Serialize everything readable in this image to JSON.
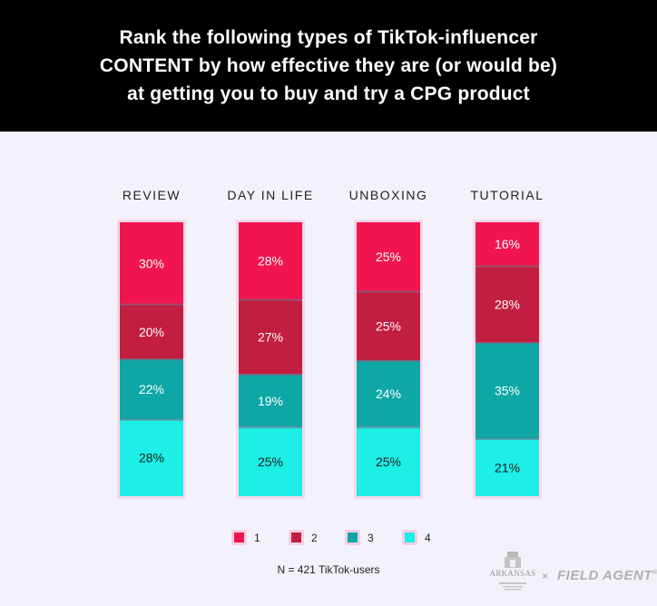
{
  "title_lines": [
    "Rank the following types of TikTok-influencer",
    "CONTENT by how effective they are (or would be)",
    "at getting you to buy and try a CPG product"
  ],
  "chart_data": {
    "type": "bar",
    "stacked": true,
    "percent": true,
    "categories": [
      "REVIEW",
      "DAY IN LIFE",
      "UNBOXING",
      "TUTORIAL"
    ],
    "series": [
      {
        "name": "1",
        "color": "#f0154f",
        "values": [
          30,
          28,
          25,
          16
        ]
      },
      {
        "name": "2",
        "color": "#c21e3f",
        "values": [
          20,
          27,
          25,
          28
        ]
      },
      {
        "name": "3",
        "color": "#0ea7a6",
        "values": [
          22,
          19,
          24,
          35
        ]
      },
      {
        "name": "4",
        "color": "#1deee6",
        "values": [
          28,
          25,
          25,
          21
        ]
      }
    ],
    "data_labels": [
      [
        "30%",
        "28%",
        "25%",
        "16%"
      ],
      [
        "20%",
        "27%",
        "25%",
        "28%"
      ],
      [
        "22%",
        "19%",
        "24%",
        "35%"
      ],
      [
        "28%",
        "25%",
        "25%",
        "21%"
      ]
    ],
    "ylim": [
      0,
      100
    ],
    "legend": "bottom",
    "grid": false
  },
  "legend_labels": [
    "1",
    "2",
    "3",
    "4"
  ],
  "note": "N = 421 TikTok-users",
  "logos": {
    "university": "ARKANSAS",
    "separator": "×",
    "brand": "FIELD AGENT",
    "brand_mark": "®"
  }
}
